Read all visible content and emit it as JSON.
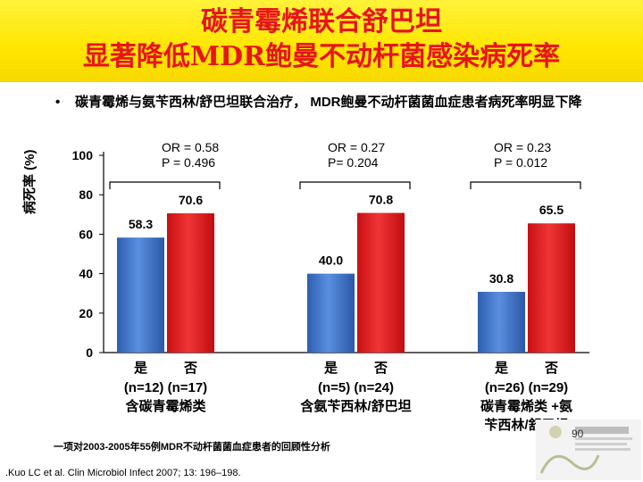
{
  "title_line1": "碳青霉烯联合舒巴坦",
  "title_line2": "显著降低MDR鲍曼不动杆菌感染病死率",
  "bullet": "碳青霉烯与氨苄西林/舒巴坦联合治疗， MDR鲍曼不动杆菌菌血症患者病死率明显下降",
  "bullet_symbol": "•",
  "note": "一项对2003-2005年55例MDR不动杆菌菌血症患者的回顾性分析",
  "reference": ".Kuo LC et al. Clin Microbiol Infect 2007; 13: 196–198.",
  "page_number": "90",
  "colors": {
    "header": "#ffe600",
    "title": "#e8141b",
    "yes_bar": "#3b73c4",
    "no_bar": "#e01e1e"
  },
  "chart_data": {
    "type": "bar",
    "ylabel": "病死率 (%)",
    "ylim": [
      0,
      100
    ],
    "yticks": [
      "0",
      "20",
      "40",
      "60",
      "80",
      "100"
    ],
    "grid": false,
    "groups": [
      {
        "stats_or": "OR = 0.58",
        "stats_p": "P = 0.496",
        "bar_labels": [
          "是",
          "否"
        ],
        "counts": [
          "(n=12)",
          "(n=17)"
        ],
        "group_label": [
          "含碳青霉烯类"
        ],
        "values": [
          58.3,
          70.6
        ],
        "value_labels": [
          "58.3",
          "70.6"
        ]
      },
      {
        "stats_or": "OR = 0.27",
        "stats_p": "P= 0.204",
        "bar_labels": [
          "是",
          "否"
        ],
        "counts": [
          "(n=5)",
          "(n=24)"
        ],
        "group_label": [
          "含氨苄西林/舒巴坦"
        ],
        "values": [
          40.0,
          70.8
        ],
        "value_labels": [
          "40.0",
          "70.8"
        ]
      },
      {
        "stats_or": "OR = 0.23",
        "stats_p": "P = 0.012",
        "bar_labels": [
          "是",
          "否"
        ],
        "counts": [
          "(n=26)",
          "(n=29)"
        ],
        "group_label": [
          "碳青霉烯类 +氨",
          "苄西林/舒巴坦"
        ],
        "values": [
          30.8,
          65.5
        ],
        "value_labels": [
          "30.8",
          "65.5"
        ]
      }
    ]
  }
}
